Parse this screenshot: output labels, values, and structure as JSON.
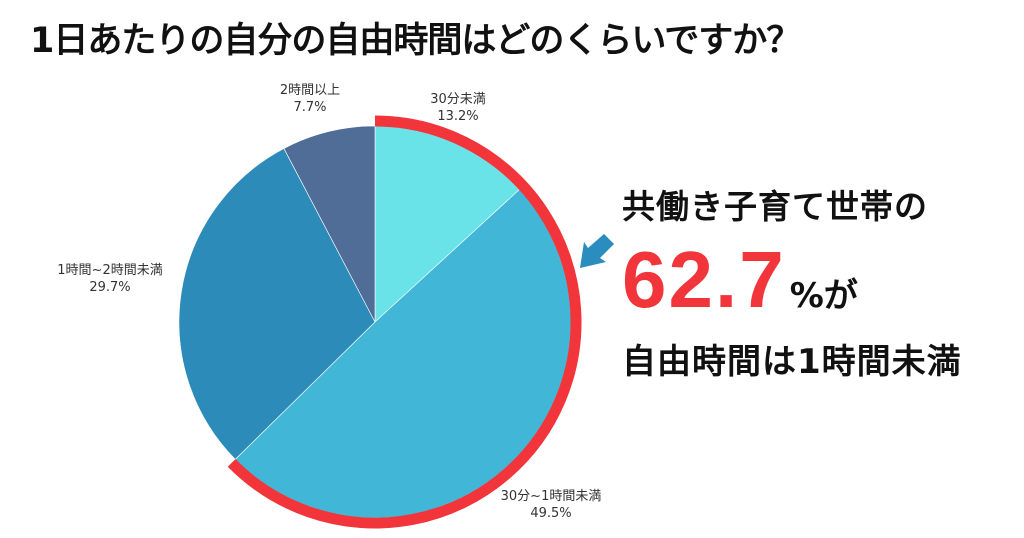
{
  "title": "1日あたりの自分の自由時間はどのくらいですか？",
  "callout": {
    "line1": "共働き子育て世帯の",
    "number": "62.7",
    "suffix": "%が",
    "line3": "自由時間は1時間未満",
    "highlight_color": "#f2353a",
    "arrow_color": "#2b8cbf"
  },
  "labels": {
    "s0": {
      "name": "30分未満",
      "pct": "13.2%"
    },
    "s1": {
      "name": "30分~1時間未満",
      "pct": "49.5%"
    },
    "s2": {
      "name": "1時間~2時間未満",
      "pct": "29.7%"
    },
    "s3": {
      "name": "2時間以上",
      "pct": "7.7%"
    }
  },
  "chart_data": {
    "type": "pie",
    "title": "1日あたりの自分の自由時間はどのくらいですか？",
    "categories": [
      "30分未満",
      "30分~1時間未満",
      "1時間~2時間未満",
      "2時間以上"
    ],
    "values": [
      13.2,
      49.5,
      29.7,
      7.7
    ],
    "unit": "%",
    "colors": [
      "#6ae3e8",
      "#41b6d6",
      "#2d8bb9",
      "#4f6d96"
    ],
    "start_angle_deg": 0,
    "direction": "clockwise",
    "highlight": {
      "categories": [
        "30分未満",
        "30分~1時間未満"
      ],
      "total": 62.7,
      "color": "#f2353a",
      "annotation": "共働き子育て世帯の62.7%が自由時間は1時間未満"
    }
  }
}
